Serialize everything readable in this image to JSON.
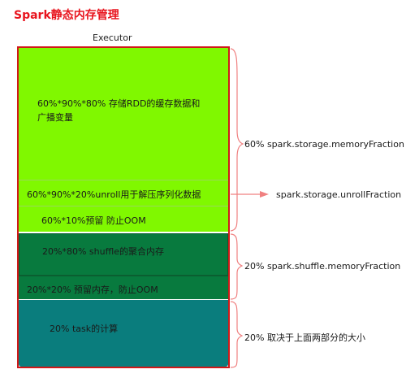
{
  "title": "Spark静态内存管理",
  "executor_label": "Executor",
  "blocks": {
    "storage_cache": "60%*90%*80%   存储RDD的缓存数据和广播变量",
    "unroll": "60%*90%*20%unroll用于解压序列化数据",
    "storage_reserve": "60%*10%预留 防止OOM",
    "shuffle_agg": "20%*80%  shuffle的聚合内存",
    "shuffle_reserve": "20%*20%  预留内存，防止OOM",
    "task": "20%  task的计算"
  },
  "annotations": {
    "storage": "60%   spark.storage.memoryFraction",
    "unroll": "spark.storage.unrollFraction",
    "shuffle": "20%  spark.shuffle.memoryFraction",
    "task": "20%  取决于上面两部分的大小"
  },
  "colors": {
    "title": "#e8141e",
    "storage": "#80f800",
    "shuffle": "#087a3e",
    "task": "#0a7d7d",
    "bracket": "#f08080"
  }
}
